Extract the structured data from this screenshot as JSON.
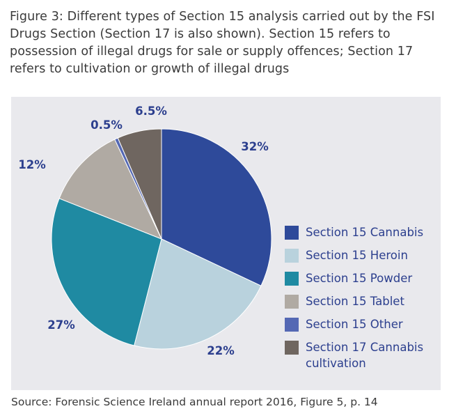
{
  "caption": "Figure 3: Different types of Section 15 analysis carried out by the FSI Drugs Section (Section 17 is also shown). Section 15 refers to possession of illegal drugs for sale or supply offences; Section 17 refers to cultivation or growth of illegal drugs",
  "source": "Source: Forensic Science Ireland annual report 2016, Figure 5, p. 14",
  "chart_data": {
    "type": "pie",
    "title": "",
    "legend_position": "right",
    "slices": [
      {
        "label": "Section 15 Cannabis",
        "value": 32,
        "display": "32%",
        "color": "#2e4a9a"
      },
      {
        "label": "Section 15 Heroin",
        "value": 22,
        "display": "22%",
        "color": "#b9d2dd"
      },
      {
        "label": "Section 15 Powder",
        "value": 27,
        "display": "27%",
        "color": "#1f8aa2"
      },
      {
        "label": "Section 15 Tablet",
        "value": 12,
        "display": "12%",
        "color": "#b0aaa3"
      },
      {
        "label": "Section 15 Other",
        "value": 0.5,
        "display": "0.5%",
        "color": "#5468b4"
      },
      {
        "label": "Section 17 Cannabis cultivation",
        "value": 6.5,
        "display": "6.5%",
        "color": "#6f6660"
      }
    ]
  }
}
